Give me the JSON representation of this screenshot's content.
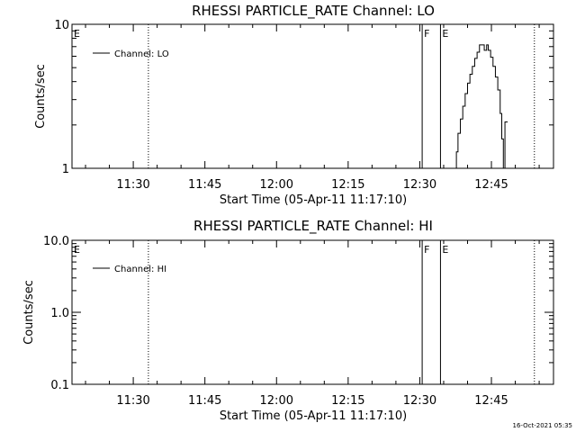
{
  "chart_data": [
    {
      "type": "line",
      "title": "RHESSI PARTICLE_RATE Channel: LO",
      "xlabel": "Start Time (05-Apr-11 11:17:10)",
      "ylabel": "Counts/sec",
      "y_scale": "log",
      "ylim": [
        1,
        10
      ],
      "y_ticks": [
        1,
        10
      ],
      "y_tick_labels": [
        "1",
        "10"
      ],
      "xlim": [
        "11:17:10",
        "12:58:00"
      ],
      "x_ticks": [
        "11:30",
        "11:45",
        "12:00",
        "12:15",
        "12:30",
        "12:45"
      ],
      "grid": false,
      "legend": {
        "position": "top-left",
        "entries": [
          "Channel: LO"
        ]
      },
      "vertical_markers": [
        {
          "time": "11:17:10",
          "label": "E",
          "style": "solid"
        },
        {
          "time": "11:33:10",
          "label": "",
          "style": "dotted"
        },
        {
          "time": "12:30:30",
          "label": "F",
          "style": "solid"
        },
        {
          "time": "12:34:20",
          "label": "E",
          "style": "solid"
        },
        {
          "time": "12:54:00",
          "label": "",
          "style": "dotted"
        }
      ],
      "series": [
        {
          "name": "Channel: LO",
          "x": [
            "12:37:10",
            "12:37:40",
            "12:38:00",
            "12:38:30",
            "12:39:00",
            "12:39:30",
            "12:40:00",
            "12:40:30",
            "12:41:00",
            "12:41:30",
            "12:42:00",
            "12:42:30",
            "12:43:00",
            "12:43:30",
            "12:44:00",
            "12:44:20",
            "12:44:50",
            "12:45:20",
            "12:45:50",
            "12:46:20",
            "12:46:50",
            "12:47:10",
            "12:47:30",
            "12:47:50"
          ],
          "values": [
            1.0,
            1.3,
            1.75,
            2.2,
            2.7,
            3.3,
            3.9,
            4.5,
            5.1,
            5.8,
            6.4,
            7.2,
            7.2,
            6.6,
            7.2,
            6.6,
            5.9,
            5.1,
            4.3,
            3.5,
            2.4,
            1.6,
            1.0,
            2.1
          ]
        }
      ]
    },
    {
      "type": "line",
      "title": "RHESSI PARTICLE_RATE Channel: HI",
      "xlabel": "Start Time (05-Apr-11 11:17:10)",
      "ylabel": "Counts/sec",
      "y_scale": "log",
      "ylim": [
        0.1,
        10
      ],
      "y_ticks": [
        0.1,
        1,
        10
      ],
      "y_tick_labels": [
        "0.1",
        "1.0",
        "10.0"
      ],
      "xlim": [
        "11:17:10",
        "12:58:00"
      ],
      "x_ticks": [
        "11:30",
        "11:45",
        "12:00",
        "12:15",
        "12:30",
        "12:45"
      ],
      "grid": false,
      "legend": {
        "position": "top-left",
        "entries": [
          "Channel: HI"
        ]
      },
      "vertical_markers": [
        {
          "time": "11:17:10",
          "label": "E",
          "style": "solid"
        },
        {
          "time": "11:33:10",
          "label": "",
          "style": "dotted"
        },
        {
          "time": "12:30:30",
          "label": "F",
          "style": "solid"
        },
        {
          "time": "12:34:20",
          "label": "E",
          "style": "solid"
        },
        {
          "time": "12:54:00",
          "label": "",
          "style": "dotted"
        }
      ],
      "series": [
        {
          "name": "Channel: HI",
          "x": [],
          "values": []
        }
      ]
    }
  ],
  "footer": {
    "timestamp": "16-Oct-2021 05:35"
  },
  "colors": {
    "background": "#ffffff",
    "foreground": "#000000"
  }
}
